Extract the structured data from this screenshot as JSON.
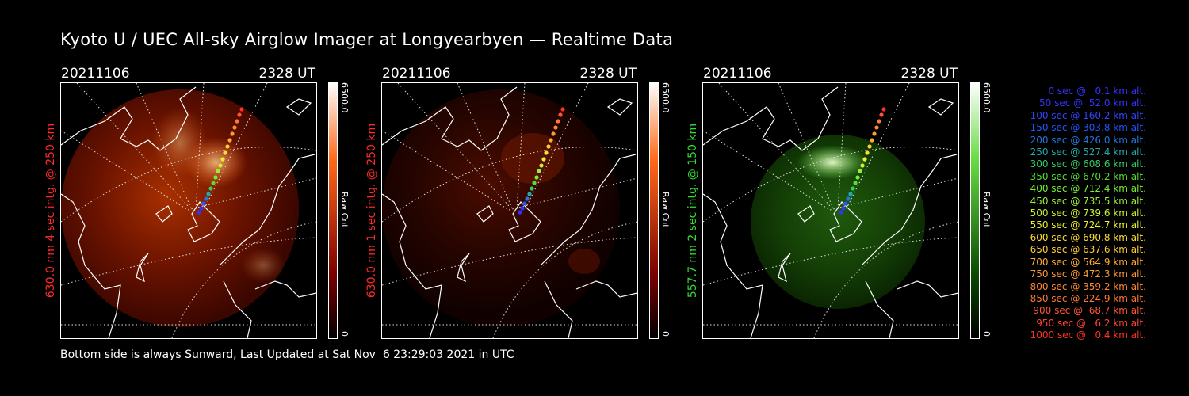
{
  "title": "Kyoto U / UEC All-sky Airglow Imager at Longyearbyen — Realtime Data",
  "footer": "Bottom side is always Sunward, Last Updated at Sat Nov  6 23:29:03 2021 in UTC",
  "panels": [
    {
      "date": "20211106",
      "time": "2328 UT",
      "side_label": "630.0 nm 4 sec intg. @ 250 km",
      "side_color": "#ff2a2a",
      "cbar_max": "6500.0",
      "cbar_min": "0",
      "cbar_unit": "Raw Cnt",
      "colormap": [
        "#ffffff",
        "#ff6a1a",
        "#7a0000",
        "#000000"
      ]
    },
    {
      "date": "20211106",
      "time": "2328 UT",
      "side_label": "630.0 nm 1 sec intg. @ 250 km",
      "side_color": "#ff2a2a",
      "cbar_max": "6500.0",
      "cbar_min": "0",
      "cbar_unit": "Raw Cnt",
      "colormap": [
        "#ffffff",
        "#ff6a1a",
        "#7a0000",
        "#000000"
      ]
    },
    {
      "date": "20211106",
      "time": "2328 UT",
      "side_label": "557.7 nm 2 sec intg. @ 150 km",
      "side_color": "#33dd33",
      "cbar_max": "6500.0",
      "cbar_min": "0",
      "cbar_unit": "Raw Cnt",
      "colormap": [
        "#ffffff",
        "#66dd44",
        "#0a4a00",
        "#000000"
      ]
    }
  ],
  "legend": [
    {
      "text": "0 sec @   0.1 km alt.",
      "color": "#3333ff"
    },
    {
      "text": "50 sec @  52.0 km alt.",
      "color": "#3333ff"
    },
    {
      "text": "100 sec @ 160.2 km alt.",
      "color": "#3344ff"
    },
    {
      "text": "150 sec @ 303.8 km alt.",
      "color": "#2255ff"
    },
    {
      "text": "200 sec @ 426.0 km alt.",
      "color": "#2277dd"
    },
    {
      "text": "250 sec @ 527.4 km alt.",
      "color": "#22aaaa"
    },
    {
      "text": "300 sec @ 608.6 km alt.",
      "color": "#33cc66"
    },
    {
      "text": "350 sec @ 670.2 km alt.",
      "color": "#55dd33"
    },
    {
      "text": "400 sec @ 712.4 km alt.",
      "color": "#77ee33"
    },
    {
      "text": "450 sec @ 735.5 km alt.",
      "color": "#99ee33"
    },
    {
      "text": "500 sec @ 739.6 km alt.",
      "color": "#ccee33"
    },
    {
      "text": "550 sec @ 724.7 km alt.",
      "color": "#eeee33"
    },
    {
      "text": "600 sec @ 690.8 km alt.",
      "color": "#ffdd33"
    },
    {
      "text": "650 sec @ 637.6 km alt.",
      "color": "#ffcc33"
    },
    {
      "text": "700 sec @ 564.9 km alt.",
      "color": "#ffaa33"
    },
    {
      "text": "750 sec @ 472.3 km alt.",
      "color": "#ff9933"
    },
    {
      "text": "800 sec @ 359.2 km alt.",
      "color": "#ff8833"
    },
    {
      "text": "850 sec @ 224.9 km alt.",
      "color": "#ff7733"
    },
    {
      "text": "900 sec @  68.7 km alt.",
      "color": "#ff5533"
    },
    {
      "text": "950 sec @   6.2 km alt.",
      "color": "#ff4433"
    },
    {
      "text": "1000 sec @   0.4 km alt.",
      "color": "#ff3322"
    }
  ]
}
